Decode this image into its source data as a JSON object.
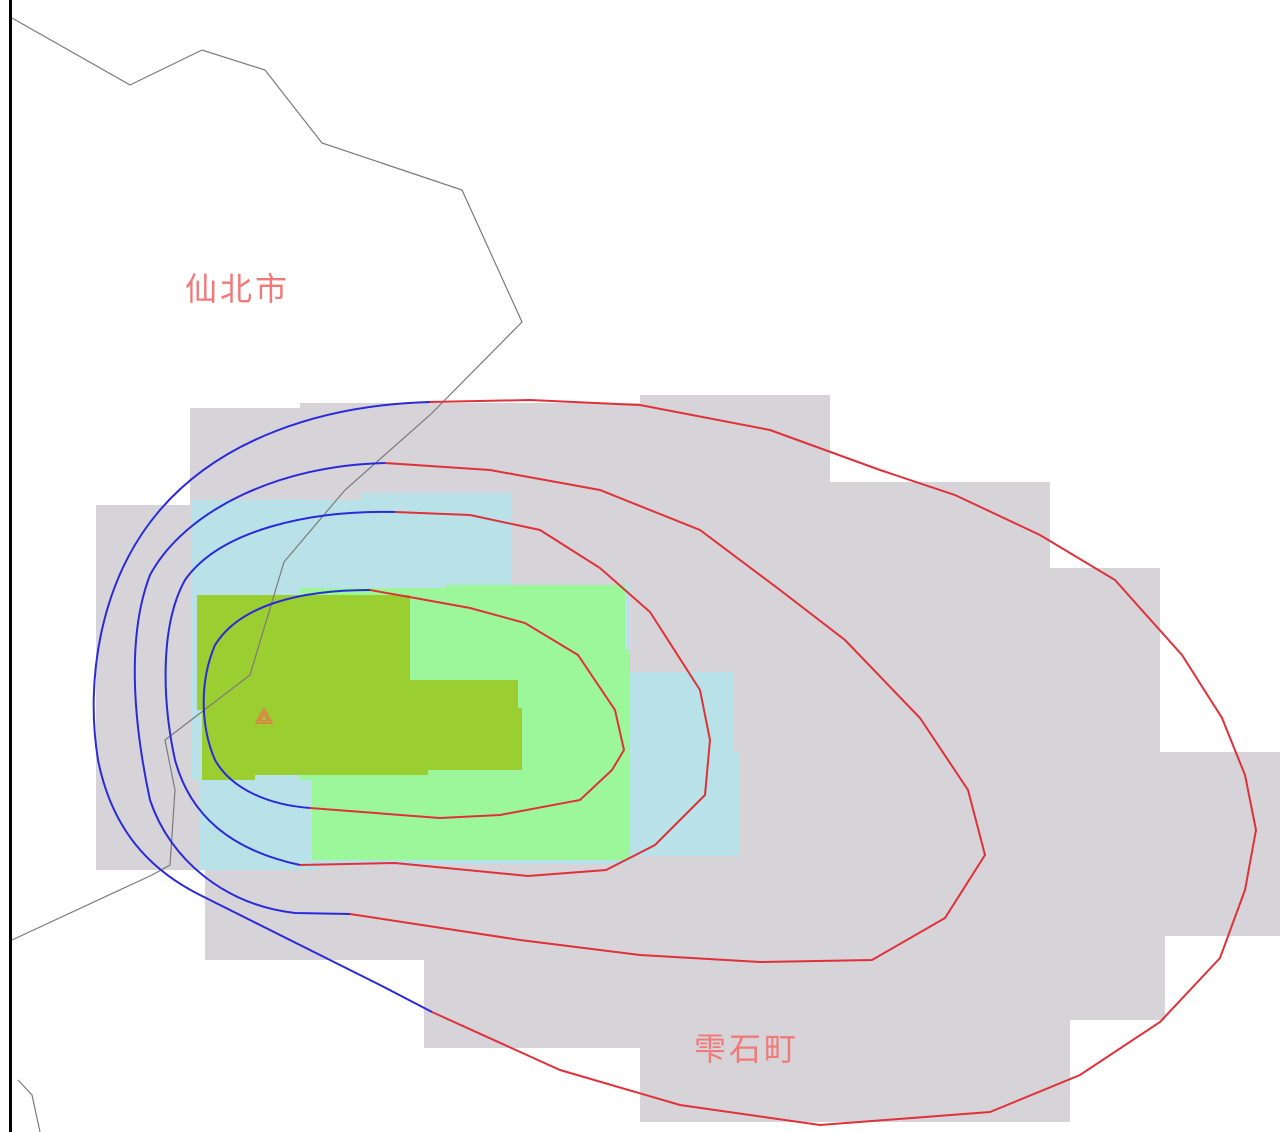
{
  "map": {
    "place_labels": {
      "north_city": "仙北市",
      "south_town": "雫石町"
    },
    "colors": {
      "background": "#ffffff",
      "hazard_zone_outer": "#d6d4d8",
      "hazard_zone_mid": "#b8e2e8",
      "hazard_zone_inner": "#9cf79a",
      "hazard_zone_core": "#9bcf31",
      "boundary_line": "#7a7a7a",
      "contour_upwind": "#2a2ad8",
      "contour_downwind": "#e0303a",
      "frame_line": "#000000",
      "label_text": "#f07a7a",
      "vent_marker": "#e8784a"
    },
    "icons": {
      "vent": "volcano-vent-triangle-icon"
    }
  }
}
